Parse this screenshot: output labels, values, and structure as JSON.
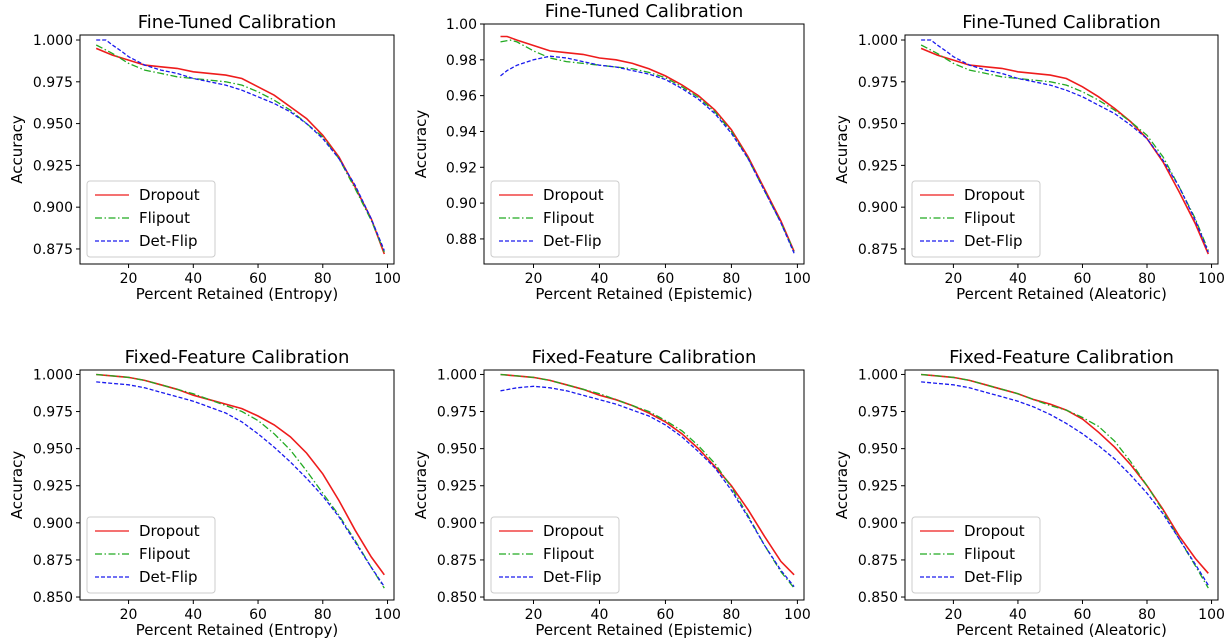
{
  "figure": {
    "background": "#ffffff"
  },
  "chart_data": [
    {
      "type": "line",
      "title": "Fine-Tuned Calibration",
      "xlabel": "Percent Retained (Entropy)",
      "ylabel": "Accuracy",
      "xlim": [
        5,
        102
      ],
      "ylim": [
        0.866,
        1.003
      ],
      "xticks": [
        20,
        40,
        60,
        80,
        100
      ],
      "yticks": [
        0.875,
        0.9,
        0.925,
        0.95,
        0.975,
        1.0
      ],
      "ytick_labels": [
        "0.875",
        "0.900",
        "0.925",
        "0.950",
        "0.975",
        "1.000"
      ],
      "legend_position": "lower-left",
      "grid": false,
      "series": [
        {
          "name": "Dropout",
          "color": "#ee1c1c",
          "style": "solid",
          "x": [
            10,
            15,
            20,
            25,
            30,
            35,
            40,
            45,
            50,
            55,
            60,
            65,
            70,
            75,
            80,
            85,
            90,
            95,
            99
          ],
          "y": [
            0.995,
            0.991,
            0.988,
            0.985,
            0.984,
            0.983,
            0.981,
            0.98,
            0.979,
            0.977,
            0.972,
            0.967,
            0.96,
            0.953,
            0.943,
            0.93,
            0.912,
            0.893,
            0.872
          ]
        },
        {
          "name": "Flipout",
          "color": "#22aa22",
          "style": "dashdot",
          "x": [
            10,
            15,
            20,
            25,
            30,
            35,
            40,
            45,
            50,
            55,
            60,
            65,
            70,
            75,
            80,
            85,
            90,
            95,
            99
          ],
          "y": [
            0.997,
            0.992,
            0.986,
            0.982,
            0.98,
            0.978,
            0.977,
            0.976,
            0.975,
            0.973,
            0.969,
            0.964,
            0.958,
            0.95,
            0.942,
            0.929,
            0.911,
            0.892,
            0.873
          ]
        },
        {
          "name": "Det-Flip",
          "color": "#1a1aee",
          "style": "dashed",
          "x": [
            10,
            13,
            15,
            18,
            20,
            25,
            30,
            35,
            40,
            45,
            50,
            55,
            60,
            65,
            70,
            75,
            80,
            85,
            90,
            95,
            99
          ],
          "y": [
            1.0,
            1.0,
            0.997,
            0.993,
            0.99,
            0.985,
            0.982,
            0.98,
            0.977,
            0.975,
            0.973,
            0.97,
            0.966,
            0.962,
            0.957,
            0.95,
            0.941,
            0.929,
            0.913,
            0.893,
            0.874
          ]
        }
      ]
    },
    {
      "type": "line",
      "title": "Fine-Tuned Calibration",
      "xlabel": "Percent Retained (Epistemic)",
      "ylabel": "Accuracy",
      "xlim": [
        5,
        102
      ],
      "ylim": [
        0.866,
        1.0
      ],
      "xticks": [
        20,
        40,
        60,
        80,
        100
      ],
      "yticks": [
        0.88,
        0.9,
        0.92,
        0.94,
        0.96,
        0.98,
        1.0
      ],
      "ytick_labels": [
        "0.88",
        "0.90",
        "0.92",
        "0.94",
        "0.96",
        "0.98",
        "1.00"
      ],
      "legend_position": "lower-left",
      "grid": false,
      "series": [
        {
          "name": "Dropout",
          "color": "#ee1c1c",
          "style": "solid",
          "x": [
            10,
            12,
            15,
            20,
            25,
            30,
            35,
            40,
            45,
            50,
            55,
            60,
            65,
            70,
            75,
            80,
            85,
            90,
            95,
            99
          ],
          "y": [
            0.993,
            0.993,
            0.991,
            0.988,
            0.985,
            0.984,
            0.983,
            0.981,
            0.98,
            0.978,
            0.975,
            0.971,
            0.966,
            0.96,
            0.952,
            0.941,
            0.926,
            0.908,
            0.89,
            0.873
          ]
        },
        {
          "name": "Flipout",
          "color": "#22aa22",
          "style": "dashdot",
          "x": [
            10,
            13,
            15,
            20,
            25,
            30,
            35,
            40,
            45,
            50,
            55,
            60,
            65,
            70,
            75,
            80,
            85,
            90,
            95,
            99
          ],
          "y": [
            0.99,
            0.991,
            0.99,
            0.985,
            0.981,
            0.979,
            0.978,
            0.977,
            0.976,
            0.975,
            0.973,
            0.97,
            0.965,
            0.959,
            0.951,
            0.94,
            0.925,
            0.907,
            0.889,
            0.873
          ]
        },
        {
          "name": "Det-Flip",
          "color": "#1a1aee",
          "style": "dashed",
          "x": [
            10,
            12,
            15,
            20,
            25,
            30,
            35,
            40,
            45,
            50,
            55,
            60,
            65,
            70,
            75,
            80,
            85,
            90,
            95,
            99
          ],
          "y": [
            0.971,
            0.974,
            0.977,
            0.98,
            0.982,
            0.981,
            0.979,
            0.977,
            0.976,
            0.974,
            0.972,
            0.969,
            0.964,
            0.958,
            0.95,
            0.939,
            0.925,
            0.907,
            0.889,
            0.872
          ]
        }
      ]
    },
    {
      "type": "line",
      "title": "Fine-Tuned Calibration",
      "xlabel": "Percent Retained (Aleatoric)",
      "ylabel": "Accuracy",
      "xlim": [
        5,
        102
      ],
      "ylim": [
        0.866,
        1.003
      ],
      "xticks": [
        20,
        40,
        60,
        80,
        100
      ],
      "yticks": [
        0.875,
        0.9,
        0.925,
        0.95,
        0.975,
        1.0
      ],
      "ytick_labels": [
        "0.875",
        "0.900",
        "0.925",
        "0.950",
        "0.975",
        "1.000"
      ],
      "legend_position": "lower-left",
      "grid": false,
      "series": [
        {
          "name": "Dropout",
          "color": "#ee1c1c",
          "style": "solid",
          "x": [
            10,
            15,
            20,
            25,
            30,
            35,
            40,
            45,
            50,
            55,
            60,
            65,
            70,
            75,
            80,
            85,
            90,
            95,
            99
          ],
          "y": [
            0.995,
            0.991,
            0.988,
            0.985,
            0.984,
            0.983,
            0.981,
            0.98,
            0.979,
            0.977,
            0.972,
            0.966,
            0.959,
            0.951,
            0.941,
            0.927,
            0.909,
            0.89,
            0.872
          ]
        },
        {
          "name": "Flipout",
          "color": "#22aa22",
          "style": "dashdot",
          "x": [
            10,
            15,
            20,
            25,
            30,
            35,
            40,
            45,
            50,
            55,
            60,
            65,
            70,
            75,
            80,
            85,
            90,
            95,
            99
          ],
          "y": [
            0.997,
            0.992,
            0.986,
            0.982,
            0.98,
            0.978,
            0.977,
            0.976,
            0.975,
            0.973,
            0.969,
            0.964,
            0.958,
            0.951,
            0.943,
            0.93,
            0.912,
            0.893,
            0.874
          ]
        },
        {
          "name": "Det-Flip",
          "color": "#1a1aee",
          "style": "dashed",
          "x": [
            10,
            13,
            15,
            18,
            20,
            25,
            30,
            35,
            40,
            45,
            50,
            55,
            60,
            65,
            70,
            75,
            80,
            85,
            90,
            95,
            99
          ],
          "y": [
            1.0,
            1.0,
            0.997,
            0.993,
            0.99,
            0.985,
            0.982,
            0.98,
            0.977,
            0.975,
            0.973,
            0.97,
            0.966,
            0.961,
            0.956,
            0.949,
            0.941,
            0.928,
            0.912,
            0.892,
            0.873
          ]
        }
      ]
    },
    {
      "type": "line",
      "title": "Fixed-Feature Calibration",
      "xlabel": "Percent Retained (Entropy)",
      "ylabel": "Accuracy",
      "xlim": [
        5,
        102
      ],
      "ylim": [
        0.848,
        1.003
      ],
      "xticks": [
        20,
        40,
        60,
        80,
        100
      ],
      "yticks": [
        0.85,
        0.875,
        0.9,
        0.925,
        0.95,
        0.975,
        1.0
      ],
      "ytick_labels": [
        "0.850",
        "0.875",
        "0.900",
        "0.925",
        "0.950",
        "0.975",
        "1.000"
      ],
      "legend_position": "lower-left",
      "grid": false,
      "series": [
        {
          "name": "Dropout",
          "color": "#ee1c1c",
          "style": "solid",
          "x": [
            10,
            15,
            20,
            25,
            30,
            35,
            40,
            45,
            50,
            55,
            60,
            65,
            70,
            75,
            80,
            85,
            90,
            95,
            99
          ],
          "y": [
            1.0,
            0.999,
            0.998,
            0.996,
            0.993,
            0.99,
            0.986,
            0.983,
            0.98,
            0.977,
            0.972,
            0.966,
            0.958,
            0.947,
            0.933,
            0.915,
            0.895,
            0.877,
            0.865
          ]
        },
        {
          "name": "Flipout",
          "color": "#22aa22",
          "style": "dashdot",
          "x": [
            10,
            15,
            20,
            25,
            30,
            35,
            40,
            45,
            50,
            55,
            60,
            65,
            70,
            75,
            80,
            85,
            90,
            95,
            99
          ],
          "y": [
            1.0,
            0.999,
            0.998,
            0.996,
            0.993,
            0.99,
            0.987,
            0.983,
            0.979,
            0.975,
            0.969,
            0.96,
            0.949,
            0.935,
            0.92,
            0.905,
            0.888,
            0.87,
            0.856
          ]
        },
        {
          "name": "Det-Flip",
          "color": "#1a1aee",
          "style": "dashed",
          "x": [
            10,
            15,
            20,
            25,
            30,
            35,
            40,
            45,
            50,
            55,
            60,
            65,
            70,
            75,
            80,
            85,
            90,
            95,
            99
          ],
          "y": [
            0.995,
            0.994,
            0.993,
            0.991,
            0.988,
            0.985,
            0.982,
            0.978,
            0.974,
            0.968,
            0.96,
            0.951,
            0.941,
            0.93,
            0.918,
            0.904,
            0.887,
            0.87,
            0.857
          ]
        }
      ]
    },
    {
      "type": "line",
      "title": "Fixed-Feature Calibration",
      "xlabel": "Percent Retained (Epistemic)",
      "ylabel": "Accuracy",
      "xlim": [
        5,
        102
      ],
      "ylim": [
        0.848,
        1.003
      ],
      "xticks": [
        20,
        40,
        60,
        80,
        100
      ],
      "yticks": [
        0.85,
        0.875,
        0.9,
        0.925,
        0.95,
        0.975,
        1.0
      ],
      "ytick_labels": [
        "0.850",
        "0.875",
        "0.900",
        "0.925",
        "0.950",
        "0.975",
        "1.000"
      ],
      "legend_position": "lower-left",
      "grid": false,
      "series": [
        {
          "name": "Dropout",
          "color": "#ee1c1c",
          "style": "solid",
          "x": [
            10,
            15,
            20,
            25,
            30,
            35,
            40,
            45,
            50,
            55,
            60,
            65,
            70,
            75,
            80,
            85,
            90,
            95,
            99
          ],
          "y": [
            1.0,
            0.999,
            0.998,
            0.996,
            0.993,
            0.99,
            0.986,
            0.983,
            0.979,
            0.974,
            0.968,
            0.96,
            0.95,
            0.938,
            0.925,
            0.909,
            0.891,
            0.874,
            0.865
          ]
        },
        {
          "name": "Flipout",
          "color": "#22aa22",
          "style": "dashdot",
          "x": [
            10,
            15,
            20,
            25,
            30,
            35,
            40,
            45,
            50,
            55,
            60,
            65,
            70,
            75,
            80,
            85,
            90,
            95,
            99
          ],
          "y": [
            1.0,
            0.999,
            0.998,
            0.996,
            0.993,
            0.99,
            0.987,
            0.983,
            0.979,
            0.975,
            0.969,
            0.962,
            0.952,
            0.94,
            0.924,
            0.905,
            0.885,
            0.867,
            0.856
          ]
        },
        {
          "name": "Det-Flip",
          "color": "#1a1aee",
          "style": "dashed",
          "x": [
            10,
            15,
            20,
            25,
            30,
            35,
            40,
            45,
            50,
            55,
            60,
            65,
            70,
            75,
            80,
            85,
            90,
            95,
            99
          ],
          "y": [
            0.989,
            0.991,
            0.992,
            0.991,
            0.989,
            0.986,
            0.983,
            0.98,
            0.976,
            0.972,
            0.966,
            0.958,
            0.948,
            0.937,
            0.922,
            0.904,
            0.885,
            0.868,
            0.857
          ]
        }
      ]
    },
    {
      "type": "line",
      "title": "Fixed-Feature Calibration",
      "xlabel": "Percent Retained (Aleatoric)",
      "ylabel": "Accuracy",
      "xlim": [
        5,
        102
      ],
      "ylim": [
        0.848,
        1.003
      ],
      "xticks": [
        20,
        40,
        60,
        80,
        100
      ],
      "yticks": [
        0.85,
        0.875,
        0.9,
        0.925,
        0.95,
        0.975,
        1.0
      ],
      "ytick_labels": [
        "0.850",
        "0.875",
        "0.900",
        "0.925",
        "0.950",
        "0.975",
        "1.000"
      ],
      "legend_position": "lower-left",
      "grid": false,
      "series": [
        {
          "name": "Dropout",
          "color": "#ee1c1c",
          "style": "solid",
          "x": [
            10,
            15,
            20,
            25,
            30,
            35,
            40,
            45,
            50,
            55,
            60,
            65,
            70,
            75,
            80,
            85,
            90,
            95,
            99
          ],
          "y": [
            1.0,
            0.999,
            0.998,
            0.996,
            0.993,
            0.99,
            0.987,
            0.983,
            0.98,
            0.976,
            0.97,
            0.961,
            0.951,
            0.939,
            0.925,
            0.909,
            0.891,
            0.876,
            0.866
          ]
        },
        {
          "name": "Flipout",
          "color": "#22aa22",
          "style": "dashdot",
          "x": [
            10,
            15,
            20,
            25,
            30,
            35,
            40,
            45,
            50,
            55,
            60,
            65,
            70,
            75,
            80,
            85,
            90,
            95,
            99
          ],
          "y": [
            1.0,
            0.999,
            0.998,
            0.996,
            0.993,
            0.99,
            0.987,
            0.983,
            0.979,
            0.976,
            0.971,
            0.965,
            0.955,
            0.941,
            0.925,
            0.908,
            0.889,
            0.871,
            0.856
          ]
        },
        {
          "name": "Det-Flip",
          "color": "#1a1aee",
          "style": "dashed",
          "x": [
            10,
            15,
            20,
            25,
            30,
            35,
            40,
            45,
            50,
            55,
            60,
            65,
            70,
            75,
            80,
            85,
            90,
            95,
            99
          ],
          "y": [
            0.995,
            0.994,
            0.993,
            0.991,
            0.988,
            0.985,
            0.982,
            0.978,
            0.973,
            0.967,
            0.96,
            0.952,
            0.943,
            0.932,
            0.92,
            0.906,
            0.889,
            0.872,
            0.858
          ]
        }
      ]
    }
  ]
}
